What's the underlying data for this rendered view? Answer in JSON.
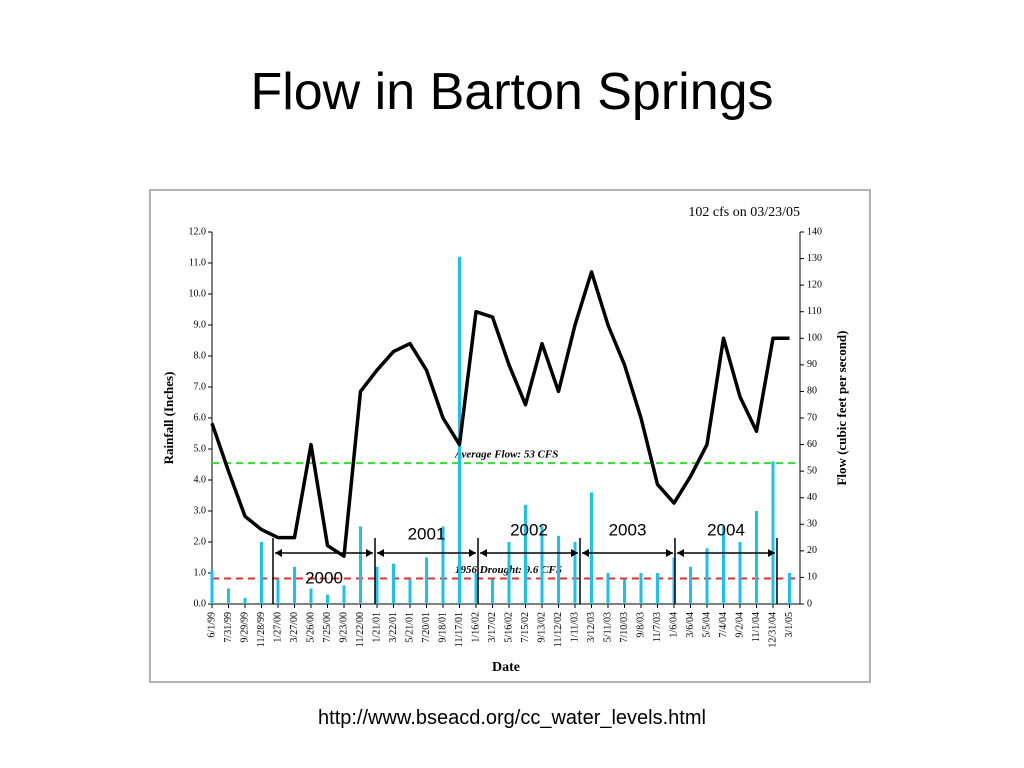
{
  "title": "Flow in Barton Springs",
  "source": "http://www.bseacd.org/cc_water_levels.html",
  "chart_data": {
    "type": "bar-line",
    "note": "102 cfs on 03/23/05",
    "xlabel": "Date",
    "categories": [
      "6/1/99",
      "7/31/99",
      "9/29/99",
      "11/28/99",
      "1/27/00",
      "3/27/00",
      "5/26/00",
      "7/25/00",
      "9/23/00",
      "11/22/00",
      "1/21/01",
      "3/22/01",
      "5/21/01",
      "7/20/01",
      "9/18/01",
      "11/17/01",
      "1/16/02",
      "3/17/02",
      "5/16/02",
      "7/15/02",
      "9/13/02",
      "11/12/02",
      "1/11/03",
      "3/12/03",
      "5/11/03",
      "7/10/03",
      "9/8/03",
      "11/7/03",
      "1/6/04",
      "3/6/04",
      "5/5/04",
      "7/4/04",
      "9/2/04",
      "11/1/04",
      "12/31/04",
      "3/1/05"
    ],
    "series": [
      {
        "name": "Rainfall (Inches)",
        "type": "bar",
        "color": "#19c3f0",
        "values": [
          1.1,
          0.5,
          0.2,
          2.0,
          0.8,
          1.2,
          0.5,
          0.3,
          0.6,
          2.5,
          1.2,
          1.3,
          0.8,
          1.5,
          2.5,
          11.2,
          1.0,
          0.8,
          2.0,
          3.2,
          2.5,
          2.2,
          2.0,
          3.6,
          1.0,
          0.8,
          1.0,
          1.0,
          1.5,
          1.2,
          1.8,
          2.5,
          2.0,
          3.0,
          4.6,
          1.0
        ]
      },
      {
        "name": "Flow (cubic feet per second)",
        "type": "line",
        "axis": "y2",
        "color": "#000000",
        "values": [
          68,
          50,
          33,
          28,
          25,
          25,
          60,
          22,
          18,
          80,
          88,
          95,
          98,
          88,
          70,
          60,
          110,
          108,
          90,
          75,
          98,
          80,
          105,
          125,
          105,
          90,
          70,
          45,
          38,
          48,
          60,
          100,
          78,
          65,
          100,
          100
        ]
      }
    ],
    "ylim": [
      0,
      12
    ],
    "yticks": [
      {
        "value": 0,
        "label": "0.0"
      },
      {
        "value": 1,
        "label": "1.0"
      },
      {
        "value": 2,
        "label": "2.0"
      },
      {
        "value": 3,
        "label": "3.0"
      },
      {
        "value": 4,
        "label": "4.0"
      },
      {
        "value": 5,
        "label": "5.0"
      },
      {
        "value": 6,
        "label": "6.0"
      },
      {
        "value": 7,
        "label": "7.0"
      },
      {
        "value": 8,
        "label": "8.0"
      },
      {
        "value": 9,
        "label": "9.0"
      },
      {
        "value": 10,
        "label": "10.0"
      },
      {
        "value": 11,
        "label": "11.0"
      },
      {
        "value": 12,
        "label": "12.0"
      }
    ],
    "y2lim": [
      0,
      140
    ],
    "y2ticks": [
      0,
      10,
      20,
      30,
      40,
      50,
      60,
      70,
      80,
      90,
      100,
      110,
      120,
      130,
      140
    ],
    "reference_lines": [
      {
        "label": "Average Flow:  53 CFS",
        "value": 53,
        "axis": "y2",
        "color": "#33dd33"
      },
      {
        "label": "1956 Drought:  9.6 CFS",
        "value": 9.6,
        "axis": "y2",
        "color": "#e03030"
      }
    ],
    "periods": [
      "2000",
      "2001",
      "2002",
      "2003",
      "2004"
    ]
  }
}
